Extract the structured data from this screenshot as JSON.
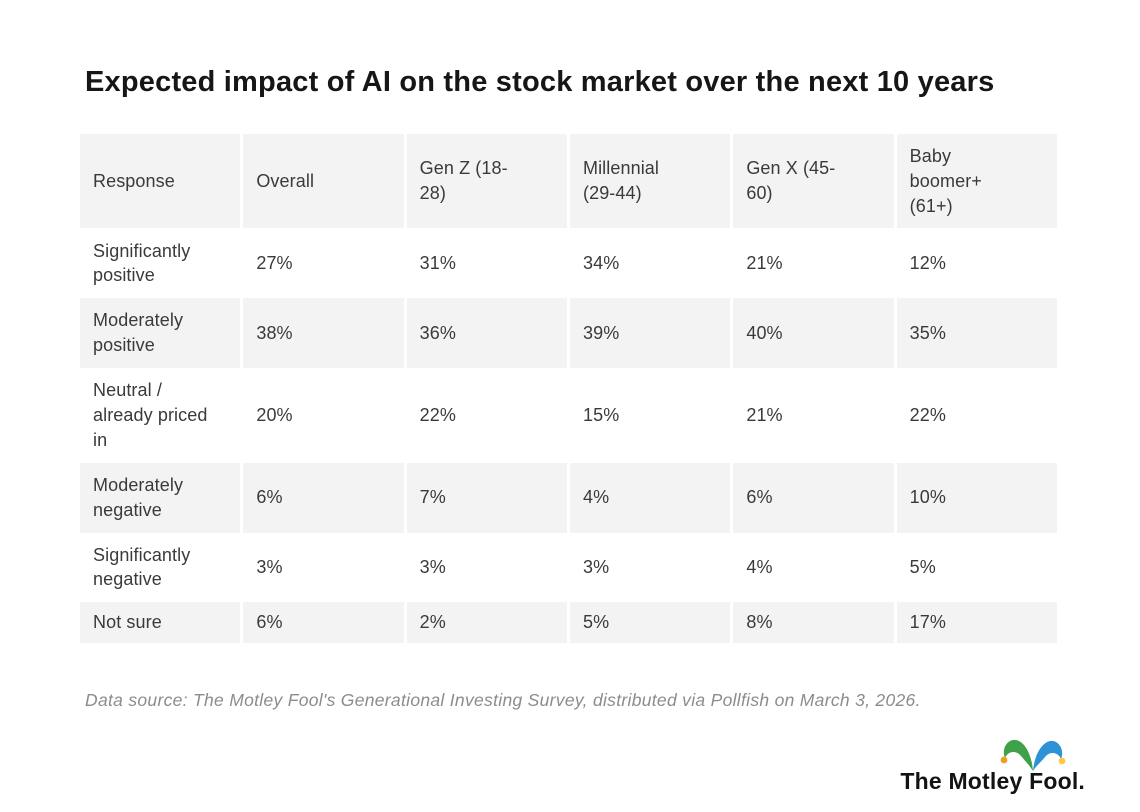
{
  "title": "Expected impact of AI on the stock market over the next 10 years",
  "chart_data": {
    "type": "table",
    "title": "Expected impact of AI on the stock market over the next 10 years",
    "columns": [
      "Response",
      "Overall",
      "Gen Z (18-28)",
      "Millennial (29-44)",
      "Gen X (45-60)",
      "Baby boomer+ (61+)"
    ],
    "rows": [
      {
        "label": "Significantly positive",
        "values": [
          "27%",
          "31%",
          "34%",
          "21%",
          "12%"
        ]
      },
      {
        "label": "Moderately positive",
        "values": [
          "38%",
          "36%",
          "39%",
          "40%",
          "35%"
        ]
      },
      {
        "label": "Neutral / already priced in",
        "values": [
          "20%",
          "22%",
          "15%",
          "21%",
          "22%"
        ]
      },
      {
        "label": "Moderately negative",
        "values": [
          "6%",
          "7%",
          "4%",
          "6%",
          "10%"
        ]
      },
      {
        "label": "Significantly negative",
        "values": [
          "3%",
          "3%",
          "3%",
          "4%",
          "5%"
        ]
      },
      {
        "label": "Not sure",
        "values": [
          "6%",
          "2%",
          "5%",
          "8%",
          "17%"
        ]
      }
    ],
    "layout": {
      "striped_rows": "even rows shaded",
      "header_shaded": true,
      "values_unit": "%"
    }
  },
  "footer": {
    "source_note": "Data source: The Motley Fool's Generational Investing Survey, distributed via Pollfish on March 3, 2026."
  },
  "logo": {
    "text": "The Motley Fool."
  },
  "colors": {
    "stripe_gray": "#f3f3f3",
    "body_text": "#3a3a3a",
    "title_text": "#161616",
    "note_text": "#8c8c8c",
    "logo_green": "#3fa24a",
    "logo_blue": "#2e93d6",
    "logo_bell_left": "#ef9f1f",
    "logo_bell_right": "#ffc843"
  }
}
